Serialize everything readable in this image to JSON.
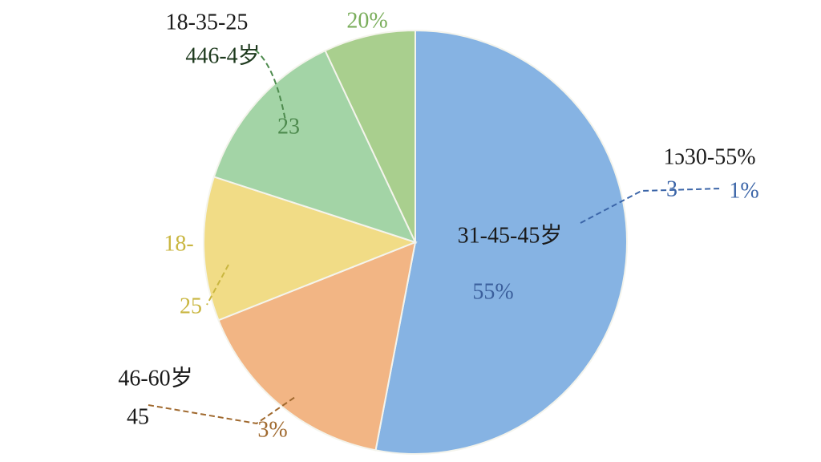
{
  "chart_data": {
    "type": "pie",
    "values": [
      53,
      16,
      11,
      13,
      7
    ],
    "colors": [
      "#86b3e3",
      "#f2b584",
      "#f1dc86",
      "#a3d4a6",
      "#a9cf8e"
    ],
    "annotations": [
      "18-35-25",
      "446-4岁",
      "20%",
      "23",
      "1ɔ30-55%",
      "3",
      "1%",
      "31-45-45岁",
      "55%",
      "18-",
      "25",
      "46-60岁",
      "45",
      "3%"
    ]
  }
}
